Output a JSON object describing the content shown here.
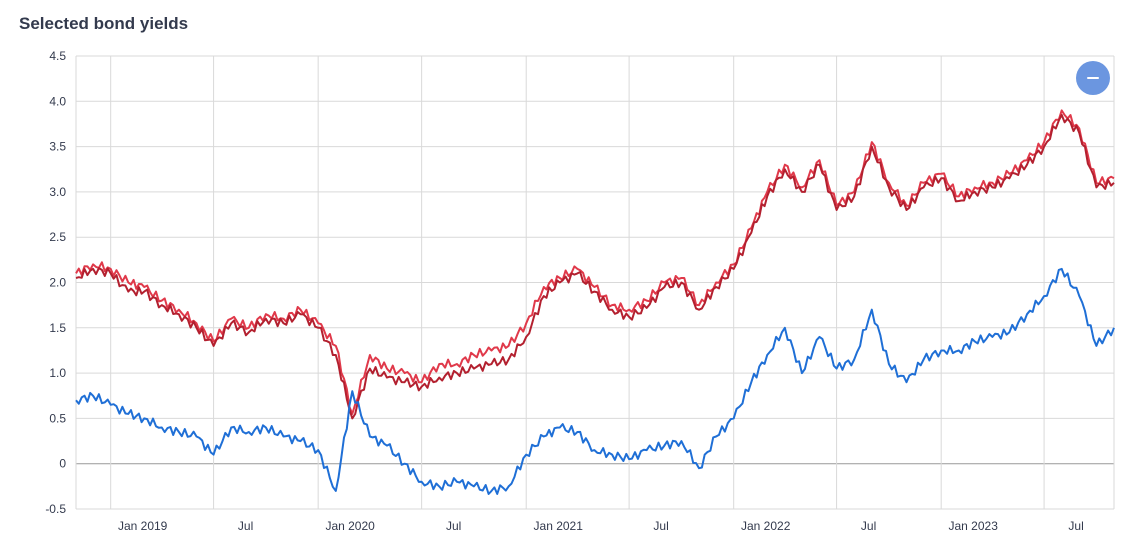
{
  "header": {
    "title": "Selected bond yields"
  },
  "controls": {
    "collapse_icon": "minus-icon"
  },
  "colors": {
    "red_light": "#e0394a",
    "red_dark": "#b3202f",
    "blue": "#1f6fd6",
    "fab": "#6b96e0"
  },
  "chart_data": {
    "type": "line",
    "title": "Selected bond yields",
    "xlabel": "",
    "ylabel": "",
    "ylim": [
      -0.5,
      4.5
    ],
    "yticks": [
      "4.5",
      "4.0",
      "3.5",
      "3.0",
      "2.5",
      "2.0",
      "1.5",
      "1.0",
      "0.5",
      "0",
      "-0.5"
    ],
    "xlim": [
      "2018-11-01",
      "2023-11-01"
    ],
    "xticks": [
      {
        "date": "2019-01-01",
        "label": "Jan 2019"
      },
      {
        "date": "2019-07-01",
        "label": "Jul"
      },
      {
        "date": "2020-01-01",
        "label": "Jan 2020"
      },
      {
        "date": "2020-07-01",
        "label": "Jul"
      },
      {
        "date": "2021-01-01",
        "label": "Jan 2021"
      },
      {
        "date": "2021-07-01",
        "label": "Jul"
      },
      {
        "date": "2022-01-01",
        "label": "Jan 2022"
      },
      {
        "date": "2022-07-01",
        "label": "Jul"
      },
      {
        "date": "2023-01-01",
        "label": "Jan 2023"
      },
      {
        "date": "2023-07-01",
        "label": "Jul"
      }
    ],
    "grid": true,
    "legend": "none",
    "series": [
      {
        "color": "#e0394a",
        "x": [
          "2018-11-01",
          "2018-12-01",
          "2019-01-01",
          "2019-02-01",
          "2019-03-01",
          "2019-04-01",
          "2019-05-01",
          "2019-06-01",
          "2019-07-01",
          "2019-08-01",
          "2019-09-01",
          "2019-10-01",
          "2019-11-01",
          "2019-12-01",
          "2020-01-01",
          "2020-02-01",
          "2020-03-01",
          "2020-04-01",
          "2020-05-01",
          "2020-06-01",
          "2020-07-01",
          "2020-08-01",
          "2020-09-01",
          "2020-10-01",
          "2020-11-01",
          "2020-12-01",
          "2021-01-01",
          "2021-02-01",
          "2021-03-01",
          "2021-04-01",
          "2021-05-01",
          "2021-06-01",
          "2021-07-01",
          "2021-08-01",
          "2021-09-01",
          "2021-10-01",
          "2021-11-01",
          "2021-12-01",
          "2022-01-01",
          "2022-02-01",
          "2022-03-01",
          "2022-04-01",
          "2022-05-01",
          "2022-06-01",
          "2022-07-01",
          "2022-08-01",
          "2022-09-01",
          "2022-10-01",
          "2022-11-01",
          "2022-12-01",
          "2023-01-01",
          "2023-02-01",
          "2023-03-01",
          "2023-04-01",
          "2023-05-01",
          "2023-06-01",
          "2023-07-01",
          "2023-08-01",
          "2023-09-01",
          "2023-10-01",
          "2023-11-01"
        ],
        "values": [
          2.1,
          2.2,
          2.15,
          2.0,
          1.95,
          1.8,
          1.7,
          1.55,
          1.35,
          1.6,
          1.5,
          1.65,
          1.6,
          1.7,
          1.55,
          1.3,
          0.55,
          1.2,
          1.05,
          1.0,
          0.9,
          1.1,
          1.1,
          1.2,
          1.25,
          1.3,
          1.55,
          1.95,
          2.05,
          2.15,
          1.95,
          1.75,
          1.7,
          1.8,
          2.0,
          2.05,
          1.75,
          2.0,
          2.2,
          2.6,
          3.0,
          3.3,
          3.05,
          3.35,
          2.85,
          3.0,
          3.55,
          3.1,
          2.85,
          3.1,
          3.2,
          2.95,
          3.05,
          3.1,
          3.2,
          3.35,
          3.55,
          3.9,
          3.7,
          3.1,
          3.15
        ]
      },
      {
        "color": "#b3202f",
        "x": [
          "2018-11-01",
          "2018-12-01",
          "2019-01-01",
          "2019-02-01",
          "2019-03-01",
          "2019-04-01",
          "2019-05-01",
          "2019-06-01",
          "2019-07-01",
          "2019-08-01",
          "2019-09-01",
          "2019-10-01",
          "2019-11-01",
          "2019-12-01",
          "2020-01-01",
          "2020-02-01",
          "2020-03-01",
          "2020-04-01",
          "2020-05-01",
          "2020-06-01",
          "2020-07-01",
          "2020-08-01",
          "2020-09-01",
          "2020-10-01",
          "2020-11-01",
          "2020-12-01",
          "2021-01-01",
          "2021-02-01",
          "2021-03-01",
          "2021-04-01",
          "2021-05-01",
          "2021-06-01",
          "2021-07-01",
          "2021-08-01",
          "2021-09-01",
          "2021-10-01",
          "2021-11-01",
          "2021-12-01",
          "2022-01-01",
          "2022-02-01",
          "2022-03-01",
          "2022-04-01",
          "2022-05-01",
          "2022-06-01",
          "2022-07-01",
          "2022-08-01",
          "2022-09-01",
          "2022-10-01",
          "2022-11-01",
          "2022-12-01",
          "2023-01-01",
          "2023-02-01",
          "2023-03-01",
          "2023-04-01",
          "2023-05-01",
          "2023-06-01",
          "2023-07-01",
          "2023-08-01",
          "2023-09-01",
          "2023-10-01",
          "2023-11-01"
        ],
        "values": [
          2.05,
          2.15,
          2.1,
          1.9,
          1.9,
          1.75,
          1.65,
          1.5,
          1.3,
          1.55,
          1.45,
          1.6,
          1.55,
          1.65,
          1.5,
          1.2,
          0.5,
          1.05,
          0.95,
          0.9,
          0.85,
          0.95,
          1.0,
          1.05,
          1.1,
          1.15,
          1.4,
          1.85,
          2.0,
          2.1,
          1.9,
          1.7,
          1.62,
          1.72,
          1.95,
          2.0,
          1.7,
          1.95,
          2.15,
          2.55,
          2.95,
          3.25,
          3.0,
          3.3,
          2.8,
          2.95,
          3.5,
          3.05,
          2.8,
          3.05,
          3.15,
          2.9,
          3.0,
          3.05,
          3.15,
          3.3,
          3.5,
          3.85,
          3.65,
          3.05,
          3.1
        ]
      },
      {
        "color": "#1f6fd6",
        "x": [
          "2018-11-01",
          "2018-12-01",
          "2019-01-01",
          "2019-02-01",
          "2019-03-01",
          "2019-04-01",
          "2019-05-01",
          "2019-06-01",
          "2019-07-01",
          "2019-08-01",
          "2019-09-01",
          "2019-10-01",
          "2019-11-01",
          "2019-12-01",
          "2020-01-01",
          "2020-02-01",
          "2020-03-01",
          "2020-04-01",
          "2020-05-01",
          "2020-06-01",
          "2020-07-01",
          "2020-08-01",
          "2020-09-01",
          "2020-10-01",
          "2020-11-01",
          "2020-12-01",
          "2021-01-01",
          "2021-02-01",
          "2021-03-01",
          "2021-04-01",
          "2021-05-01",
          "2021-06-01",
          "2021-07-01",
          "2021-08-01",
          "2021-09-01",
          "2021-10-01",
          "2021-11-01",
          "2021-12-01",
          "2022-01-01",
          "2022-02-01",
          "2022-03-01",
          "2022-04-01",
          "2022-05-01",
          "2022-06-01",
          "2022-07-01",
          "2022-08-01",
          "2022-09-01",
          "2022-10-01",
          "2022-11-01",
          "2022-12-01",
          "2023-01-01",
          "2023-02-01",
          "2023-03-01",
          "2023-04-01",
          "2023-05-01",
          "2023-06-01",
          "2023-07-01",
          "2023-08-01",
          "2023-09-01",
          "2023-10-01",
          "2023-11-01"
        ],
        "values": [
          0.7,
          0.75,
          0.65,
          0.55,
          0.5,
          0.4,
          0.35,
          0.3,
          0.1,
          0.4,
          0.35,
          0.4,
          0.3,
          0.25,
          0.15,
          -0.3,
          0.8,
          0.3,
          0.2,
          0.0,
          -0.2,
          -0.25,
          -0.2,
          -0.25,
          -0.3,
          -0.25,
          0.1,
          0.3,
          0.4,
          0.35,
          0.15,
          0.1,
          0.05,
          0.15,
          0.2,
          0.25,
          -0.05,
          0.3,
          0.5,
          0.9,
          1.2,
          1.5,
          1.0,
          1.4,
          1.05,
          1.15,
          1.7,
          1.1,
          0.9,
          1.15,
          1.25,
          1.25,
          1.35,
          1.4,
          1.45,
          1.65,
          1.85,
          2.15,
          1.85,
          1.3,
          1.5
        ]
      }
    ]
  }
}
